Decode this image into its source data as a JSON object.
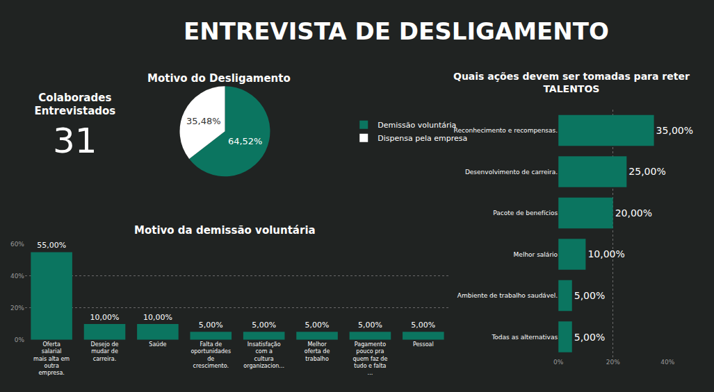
{
  "title": "ENTREVISTA DE DESLIGAMENTO",
  "chart_data": [
    {
      "type": "indicator",
      "title": "Colaborades Entrevistados",
      "value": 31
    },
    {
      "type": "pie",
      "title": "Motivo do Desligamento",
      "categories": [
        "Demissão voluntária",
        "Dispensa pela empresa"
      ],
      "values": [
        64.52,
        35.48
      ],
      "value_labels": [
        "64,52%",
        "35,48%"
      ],
      "colors": [
        "#0b7560",
        "#ffffff"
      ],
      "data_labels": true,
      "legend": "right"
    },
    {
      "type": "bar",
      "title": "Motivo da demissão voluntária",
      "categories": [
        "Oferta salarial mais alta em outra empresa.",
        "Desejo de mudar de carreira.",
        "Saúde",
        "Falta de oportunidades de crescimento.",
        "Insatisfação com a cultura organizacion...",
        "Melhor oferta de trabalho",
        "Pagamento pouco pra quem faz de tudo e falta ...",
        "Pessoal"
      ],
      "values": [
        55,
        10,
        10,
        5,
        5,
        5,
        5,
        5
      ],
      "value_labels": [
        "55,00%",
        "10,00%",
        "10,00%",
        "5,00%",
        "5,00%",
        "5,00%",
        "5,00%",
        "5,00%"
      ],
      "color": "#0b7560",
      "ylim": [
        0,
        60
      ],
      "yticks": [
        {
          "value": 0,
          "label": "0%"
        },
        {
          "value": 20,
          "label": "20%"
        },
        {
          "value": 40,
          "label": "40%"
        },
        {
          "value": 60,
          "label": "60%"
        }
      ],
      "grid": true,
      "data_labels": true
    },
    {
      "type": "bar",
      "orientation": "horizontal",
      "title": "Quais ações devem ser tomadas para reter TALENTOS",
      "categories": [
        "Reconhecimento e recompensas.",
        "Desenvolvimento de carreira.",
        "Pacote de benefícios",
        "Melhor salário",
        "Ambiente de trabalho saudável.",
        "Todas as alternativas"
      ],
      "values": [
        35,
        25,
        20,
        10,
        5,
        5
      ],
      "value_labels": [
        "35,00%",
        "25,00%",
        "20,00%",
        "10,00%",
        "5,00%",
        "5,00%"
      ],
      "color": "#0b7560",
      "xlim": [
        0,
        40
      ],
      "xticks": [
        {
          "value": 0,
          "label": "0%"
        },
        {
          "value": 20,
          "label": "20%"
        },
        {
          "value": 40,
          "label": "40%"
        }
      ],
      "grid": true,
      "data_labels": true
    }
  ]
}
